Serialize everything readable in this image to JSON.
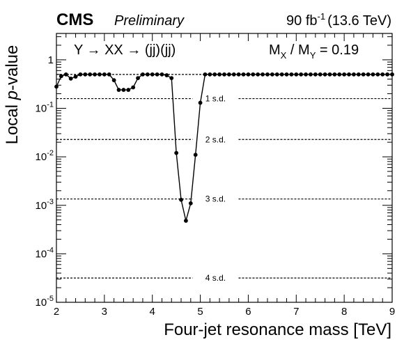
{
  "chart_data": {
    "type": "line",
    "header": {
      "experiment": "CMS",
      "status": "Preliminary",
      "luminosity": "90 fb",
      "luminosity_exponent": "-1",
      "energy": "(13.6 TeV)"
    },
    "process_label": "Y → XX → (jj)(jj)",
    "mass_ratio_label": {
      "prefix": "M",
      "sub1": "X",
      "slash": " / M",
      "sub2": "Y",
      "suffix": " = 0.19"
    },
    "xlabel": "Four-jet resonance mass [TeV]",
    "ylabel": "Local p-value",
    "ylabel_parts": {
      "before": "Local ",
      "italic": "p",
      "after": "-value"
    },
    "xlim": [
      2,
      9
    ],
    "ylim": [
      1e-05,
      3.5
    ],
    "yscale": "log",
    "xticks": [
      2,
      3,
      4,
      5,
      6,
      7,
      8,
      9
    ],
    "yticks": [
      {
        "value": 1,
        "label": "1",
        "exp": ""
      },
      {
        "value": 0.1,
        "label": "10",
        "exp": "-1"
      },
      {
        "value": 0.01,
        "label": "10",
        "exp": "-2"
      },
      {
        "value": 0.001,
        "label": "10",
        "exp": "-3"
      },
      {
        "value": 0.0001,
        "label": "10",
        "exp": "-4"
      },
      {
        "value": 1e-05,
        "label": "10",
        "exp": "-5"
      }
    ],
    "significance_lines": [
      {
        "label": "1 s.d.",
        "value": 0.1587
      },
      {
        "label": "2 s.d.",
        "value": 0.02275
      },
      {
        "label": "3 s.d.",
        "value": 0.00135
      },
      {
        "label": "4 s.d.",
        "value": 3.17e-05
      }
    ],
    "reference_line": 0.5,
    "series": [
      {
        "x": [
          2.0,
          2.1,
          2.2,
          2.3,
          2.4,
          2.5,
          2.6,
          2.7,
          2.8,
          2.9,
          3.0,
          3.1,
          3.2,
          3.3,
          3.4,
          3.5,
          3.6,
          3.7,
          3.8,
          3.9,
          4.0,
          4.1,
          4.2,
          4.3,
          4.4,
          4.5,
          4.6,
          4.7,
          4.8,
          4.9,
          5.0,
          5.1,
          5.2,
          5.3,
          5.4,
          5.5,
          5.6,
          5.7,
          5.8,
          5.9,
          6.0,
          6.1,
          6.2,
          6.3,
          6.4,
          6.5,
          6.6,
          6.7,
          6.8,
          6.9,
          7.0,
          7.1,
          7.2,
          7.3,
          7.4,
          7.5,
          7.6,
          7.7,
          7.8,
          7.9,
          8.0,
          8.1,
          8.2,
          8.3,
          8.4,
          8.5,
          8.6,
          8.7,
          8.8,
          8.9,
          9.0
        ],
        "y": [
          0.28,
          0.46,
          0.5,
          0.41,
          0.45,
          0.5,
          0.5,
          0.5,
          0.5,
          0.5,
          0.5,
          0.5,
          0.38,
          0.24,
          0.24,
          0.24,
          0.27,
          0.42,
          0.5,
          0.5,
          0.5,
          0.5,
          0.5,
          0.48,
          0.42,
          0.012,
          0.0013,
          0.00048,
          0.0011,
          0.011,
          0.13,
          0.5,
          0.5,
          0.5,
          0.5,
          0.5,
          0.5,
          0.5,
          0.5,
          0.5,
          0.5,
          0.5,
          0.5,
          0.5,
          0.5,
          0.5,
          0.5,
          0.5,
          0.5,
          0.5,
          0.5,
          0.5,
          0.5,
          0.5,
          0.5,
          0.5,
          0.5,
          0.5,
          0.5,
          0.5,
          0.5,
          0.5,
          0.5,
          0.5,
          0.5,
          0.5,
          0.5,
          0.5,
          0.5,
          0.5,
          0.5
        ]
      }
    ]
  }
}
